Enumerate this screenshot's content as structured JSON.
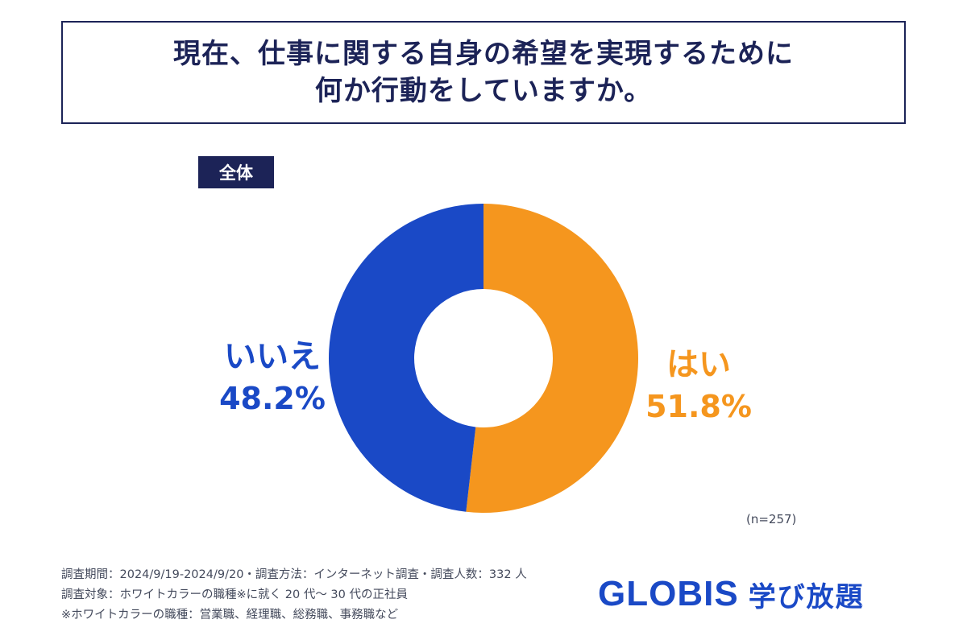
{
  "title": {
    "line1": "現在、仕事に関する自身の希望を実現するために",
    "line2": "何か行動をしていますか。"
  },
  "group_label": "全体",
  "chart_data": {
    "type": "pie",
    "donut": true,
    "slices": [
      {
        "label": "はい",
        "value": 51.8,
        "value_label": "51.8%",
        "color": "#f5961e"
      },
      {
        "label": "いいえ",
        "value": 48.2,
        "value_label": "48.2%",
        "color": "#1a49c6"
      }
    ],
    "start": "top",
    "direction": "clockwise"
  },
  "sample_note": "(n=257)",
  "footnotes": [
    "調査期間：2024/9/19-2024/9/20・調査方法：インターネット調査・調査人数：332 人",
    "調査対象：ホワイトカラーの職種※に就く 20 代〜 30 代の正社員",
    "※ホワイトカラーの職種：営業職、経理職、総務職、事務職など"
  ],
  "brand": {
    "name": "GLOBIS",
    "sub": "学び放題",
    "color": "#1a49c6"
  }
}
